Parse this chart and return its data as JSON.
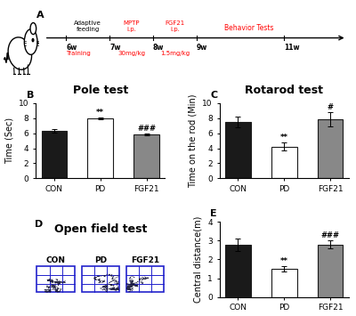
{
  "pole_test": {
    "title": "Pole test",
    "ylabel": "Time (Sec)",
    "categories": [
      "CON",
      "PD",
      "FGF21"
    ],
    "values": [
      6.3,
      7.95,
      5.85
    ],
    "errors": [
      0.25,
      0.15,
      0.12
    ],
    "colors": [
      "#1a1a1a",
      "#ffffff",
      "#888888"
    ],
    "edgecolors": [
      "#1a1a1a",
      "#1a1a1a",
      "#1a1a1a"
    ],
    "ylim": [
      0,
      10
    ],
    "yticks": [
      0,
      2,
      4,
      6,
      8,
      10
    ],
    "sig_labels": [
      "",
      "**",
      "###"
    ]
  },
  "rotarod_test": {
    "title": "Rotarod test",
    "ylabel": "Time on the rod (Min)",
    "categories": [
      "CON",
      "PD",
      "FGF21"
    ],
    "values": [
      7.5,
      4.2,
      7.85
    ],
    "errors": [
      0.7,
      0.55,
      0.9
    ],
    "colors": [
      "#1a1a1a",
      "#ffffff",
      "#888888"
    ],
    "edgecolors": [
      "#1a1a1a",
      "#1a1a1a",
      "#1a1a1a"
    ],
    "ylim": [
      0,
      10
    ],
    "yticks": [
      0,
      2,
      4,
      6,
      8,
      10
    ],
    "sig_labels": [
      "",
      "**",
      "#"
    ]
  },
  "open_field": {
    "title": "Open field test",
    "sub_labels": [
      "CON",
      "PD",
      "FGF21"
    ],
    "box_color": "#2222cc",
    "line_color": "#111111"
  },
  "central_distance": {
    "ylabel": "Central distance(m)",
    "categories": [
      "CON",
      "PD",
      "FGF21"
    ],
    "values": [
      2.78,
      1.5,
      2.8
    ],
    "errors": [
      0.35,
      0.15,
      0.2
    ],
    "colors": [
      "#1a1a1a",
      "#ffffff",
      "#888888"
    ],
    "edgecolors": [
      "#1a1a1a",
      "#1a1a1a",
      "#1a1a1a"
    ],
    "ylim": [
      0,
      4
    ],
    "yticks": [
      0,
      1,
      2,
      3,
      4
    ],
    "sig_labels": [
      "",
      "**",
      "###"
    ]
  },
  "label_fontsize": 8,
  "title_fontsize": 9,
  "tick_fontsize": 6.5,
  "axis_label_fontsize": 7
}
